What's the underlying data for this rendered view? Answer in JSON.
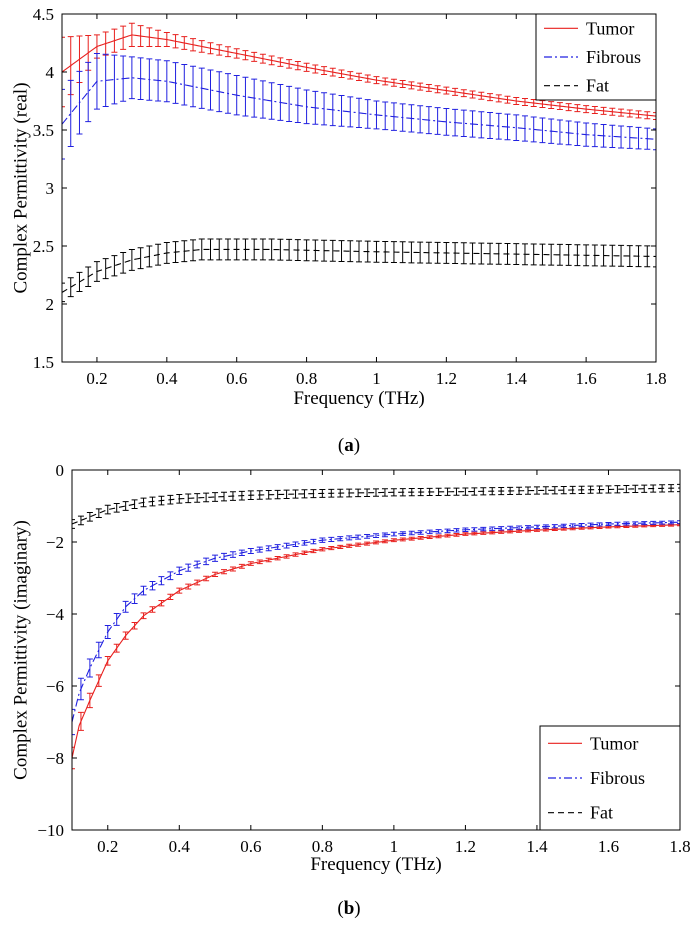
{
  "chart_data": [
    {
      "type": "line",
      "panel": "a",
      "caption_open": "(",
      "caption_letter": "a",
      "caption_close": ")",
      "xlabel": "Frequency (THz)",
      "ylabel": "Complex Permittivity (real)",
      "xlim": [
        0.1,
        1.8
      ],
      "ylim": [
        1.5,
        4.5
      ],
      "xticks": [
        0.2,
        0.4,
        0.6,
        0.8,
        1,
        1.2,
        1.4,
        1.6,
        1.8
      ],
      "xtick_labels": [
        "0.2",
        "0.4",
        "0.6",
        "0.8",
        "1",
        "1.2",
        "1.4",
        "1.6",
        "1.8"
      ],
      "yticks": [
        1.5,
        2,
        2.5,
        3,
        3.5,
        4,
        4.5
      ],
      "ytick_labels": [
        "1.5",
        "2",
        "2.5",
        "3",
        "3.5",
        "4",
        "4.5"
      ],
      "legend_position": "top-right",
      "series": [
        {
          "name": "Tumor",
          "color": "#e8201e",
          "dash": "solid",
          "points": [
            [
              0.1,
              4.0
            ],
            [
              0.2,
              4.22
            ],
            [
              0.3,
              4.32
            ],
            [
              0.4,
              4.28
            ],
            [
              0.5,
              4.22
            ],
            [
              0.6,
              4.16
            ],
            [
              0.8,
              4.04
            ],
            [
              1.0,
              3.93
            ],
            [
              1.2,
              3.84
            ],
            [
              1.4,
              3.75
            ],
            [
              1.6,
              3.68
            ],
            [
              1.8,
              3.62
            ]
          ],
          "error": [
            [
              0.1,
              0.3
            ],
            [
              0.2,
              0.1
            ],
            [
              0.3,
              0.1
            ],
            [
              0.4,
              0.06
            ],
            [
              0.6,
              0.04
            ],
            [
              1.0,
              0.03
            ],
            [
              1.8,
              0.03
            ]
          ]
        },
        {
          "name": "Fibrous",
          "color": "#2020e0",
          "dash": "dashdot",
          "points": [
            [
              0.1,
              3.55
            ],
            [
              0.2,
              3.92
            ],
            [
              0.3,
              3.95
            ],
            [
              0.4,
              3.92
            ],
            [
              0.5,
              3.86
            ],
            [
              0.6,
              3.8
            ],
            [
              0.8,
              3.7
            ],
            [
              1.0,
              3.63
            ],
            [
              1.2,
              3.57
            ],
            [
              1.4,
              3.52
            ],
            [
              1.6,
              3.46
            ],
            [
              1.8,
              3.42
            ]
          ],
          "error": [
            [
              0.1,
              0.3
            ],
            [
              0.3,
              0.18
            ],
            [
              0.6,
              0.17
            ],
            [
              1.0,
              0.12
            ],
            [
              1.4,
              0.11
            ],
            [
              1.8,
              0.09
            ]
          ]
        },
        {
          "name": "Fat",
          "color": "#000000",
          "dash": "dashed",
          "points": [
            [
              0.1,
              2.1
            ],
            [
              0.2,
              2.28
            ],
            [
              0.3,
              2.38
            ],
            [
              0.4,
              2.44
            ],
            [
              0.5,
              2.47
            ],
            [
              0.7,
              2.47
            ],
            [
              1.0,
              2.45
            ],
            [
              1.2,
              2.44
            ],
            [
              1.4,
              2.43
            ],
            [
              1.6,
              2.42
            ],
            [
              1.8,
              2.41
            ]
          ],
          "error": [
            [
              0.1,
              0.08
            ],
            [
              0.3,
              0.09
            ],
            [
              0.5,
              0.09
            ],
            [
              1.0,
              0.09
            ],
            [
              1.8,
              0.09
            ]
          ]
        }
      ]
    },
    {
      "type": "line",
      "panel": "b",
      "caption_open": "(",
      "caption_letter": "b",
      "caption_close": ")",
      "xlabel": "Frequency (THz)",
      "ylabel": "Complex Permittivity (imaginary)",
      "xlim": [
        0.1,
        1.8
      ],
      "ylim": [
        -10,
        0
      ],
      "xticks": [
        0.2,
        0.4,
        0.6,
        0.8,
        1,
        1.2,
        1.4,
        1.6,
        1.8
      ],
      "xtick_labels": [
        "0.2",
        "0.4",
        "0.6",
        "0.8",
        "1",
        "1.2",
        "1.4",
        "1.6",
        "1.8"
      ],
      "yticks": [
        -10,
        -8,
        -6,
        -4,
        -2,
        0
      ],
      "ytick_labels": [
        "−10",
        "−8",
        "−6",
        "−4",
        "−2",
        "0"
      ],
      "legend_position": "bottom-right",
      "series": [
        {
          "name": "Tumor",
          "color": "#e8201e",
          "dash": "solid",
          "points": [
            [
              0.1,
              -8.0
            ],
            [
              0.12,
              -7.1
            ],
            [
              0.15,
              -6.4
            ],
            [
              0.2,
              -5.3
            ],
            [
              0.25,
              -4.6
            ],
            [
              0.3,
              -4.05
            ],
            [
              0.4,
              -3.35
            ],
            [
              0.5,
              -2.9
            ],
            [
              0.6,
              -2.6
            ],
            [
              0.8,
              -2.2
            ],
            [
              1.0,
              -1.95
            ],
            [
              1.2,
              -1.78
            ],
            [
              1.4,
              -1.67
            ],
            [
              1.6,
              -1.58
            ],
            [
              1.8,
              -1.52
            ]
          ],
          "error": [
            [
              0.1,
              0.3
            ],
            [
              0.15,
              0.2
            ],
            [
              0.2,
              0.12
            ],
            [
              0.3,
              0.08
            ],
            [
              0.6,
              0.05
            ],
            [
              1.0,
              0.04
            ],
            [
              1.8,
              0.03
            ]
          ]
        },
        {
          "name": "Fibrous",
          "color": "#2020e0",
          "dash": "dashdot",
          "points": [
            [
              0.1,
              -7.0
            ],
            [
              0.12,
              -6.2
            ],
            [
              0.15,
              -5.5
            ],
            [
              0.2,
              -4.5
            ],
            [
              0.25,
              -3.8
            ],
            [
              0.3,
              -3.35
            ],
            [
              0.4,
              -2.8
            ],
            [
              0.5,
              -2.45
            ],
            [
              0.6,
              -2.25
            ],
            [
              0.8,
              -1.95
            ],
            [
              1.0,
              -1.78
            ],
            [
              1.2,
              -1.66
            ],
            [
              1.4,
              -1.58
            ],
            [
              1.6,
              -1.5
            ],
            [
              1.8,
              -1.45
            ]
          ],
          "error": [
            [
              0.1,
              0.35
            ],
            [
              0.15,
              0.25
            ],
            [
              0.2,
              0.18
            ],
            [
              0.3,
              0.12
            ],
            [
              0.6,
              0.07
            ],
            [
              1.0,
              0.05
            ],
            [
              1.8,
              0.04
            ]
          ]
        },
        {
          "name": "Fat",
          "color": "#000000",
          "dash": "dashed",
          "points": [
            [
              0.1,
              -1.5
            ],
            [
              0.2,
              -1.1
            ],
            [
              0.3,
              -0.9
            ],
            [
              0.4,
              -0.8
            ],
            [
              0.6,
              -0.7
            ],
            [
              0.8,
              -0.65
            ],
            [
              1.0,
              -0.62
            ],
            [
              1.2,
              -0.6
            ],
            [
              1.4,
              -0.57
            ],
            [
              1.6,
              -0.54
            ],
            [
              1.8,
              -0.5
            ]
          ],
          "error": [
            [
              0.1,
              0.12
            ],
            [
              0.3,
              0.12
            ],
            [
              0.6,
              0.12
            ],
            [
              1.0,
              0.1
            ],
            [
              1.8,
              0.1
            ]
          ]
        }
      ]
    }
  ]
}
